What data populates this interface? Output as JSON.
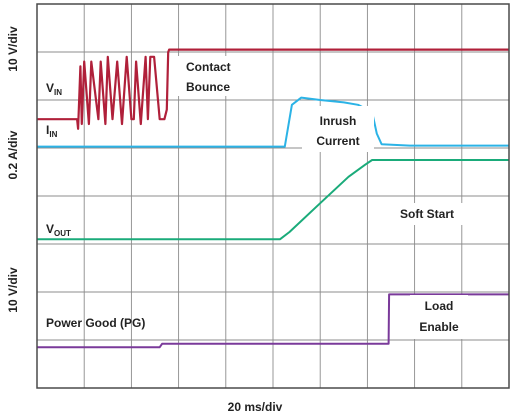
{
  "chart_data": {
    "type": "line",
    "title": "",
    "xlabel": "20 ms/div",
    "ylabels": [
      "10 V/div",
      "0.2 A/div",
      "10 V/div"
    ],
    "grid": true,
    "x_divisions": 10,
    "y_divisions": 8,
    "x_unit": "divisions",
    "y_unit": "divisions",
    "colors": {
      "vin": "#b0203a",
      "iin": "#2bb3e6",
      "vout": "#1aab7a",
      "pg": "#7a3a9a",
      "grid": "#8c8c8c",
      "frame": "#4a4a4a",
      "label_bg": "#ffffff"
    },
    "series": [
      {
        "id": "vin",
        "label_main": "V",
        "label_sub": "IN",
        "x": [
          0.0,
          0.85,
          0.87,
          0.92,
          0.95,
          1.0,
          1.1,
          1.15,
          1.3,
          1.35,
          1.45,
          1.5,
          1.6,
          1.7,
          1.8,
          1.9,
          2.0,
          2.05,
          2.1,
          2.2,
          2.3,
          2.35,
          2.4,
          2.48,
          2.6,
          2.7,
          2.75,
          2.78,
          2.8,
          10.0
        ],
        "y": [
          5.6,
          5.6,
          5.4,
          6.7,
          5.5,
          6.8,
          5.5,
          6.8,
          5.6,
          6.8,
          5.5,
          6.9,
          5.6,
          6.8,
          5.5,
          6.9,
          5.6,
          5.6,
          6.8,
          5.5,
          6.9,
          5.6,
          6.9,
          6.9,
          5.6,
          5.6,
          5.8,
          7.0,
          7.05,
          7.05
        ]
      },
      {
        "id": "iin",
        "label_main": "I",
        "label_sub": "IN",
        "x": [
          0.0,
          5.25,
          5.4,
          5.6,
          6.0,
          6.5,
          6.8,
          7.1,
          7.2,
          7.3,
          7.9,
          10.0
        ],
        "y": [
          5.03,
          5.03,
          5.9,
          6.05,
          6.0,
          5.95,
          5.9,
          5.75,
          5.3,
          5.08,
          5.05,
          5.05
        ]
      },
      {
        "id": "vout",
        "label_main": "V",
        "label_sub": "OUT",
        "x": [
          0.0,
          5.15,
          5.35,
          6.0,
          6.6,
          6.95,
          7.1,
          10.0
        ],
        "y": [
          3.1,
          3.1,
          3.25,
          3.85,
          4.4,
          4.65,
          4.75,
          4.75
        ]
      },
      {
        "id": "pg",
        "label_main": "Power Good (PG)",
        "label_sub": "",
        "x": [
          0.0,
          2.6,
          2.65,
          7.45,
          7.46,
          10.0
        ],
        "y": [
          0.85,
          0.85,
          0.92,
          0.92,
          1.95,
          1.95
        ]
      }
    ],
    "annotations": [
      "Contact Bounce",
      "Inrush Current",
      "Soft Start",
      "Load Enable"
    ]
  },
  "labels": {
    "xlabel": "20 ms/div",
    "ylabel_top": "10 V/div",
    "ylabel_mid": "0.2 A/div",
    "ylabel_bot": "10 V/div",
    "vin_main": "V",
    "vin_sub": "IN",
    "iin_main": "I",
    "iin_sub": "IN",
    "vout_main": "V",
    "vout_sub": "OUT",
    "pg": "Power Good (PG)",
    "contact_1": "Contact",
    "contact_2": "Bounce",
    "inrush_1": "Inrush",
    "inrush_2": "Current",
    "softstart": "Soft Start",
    "load_1": "Load",
    "load_2": "Enable"
  }
}
